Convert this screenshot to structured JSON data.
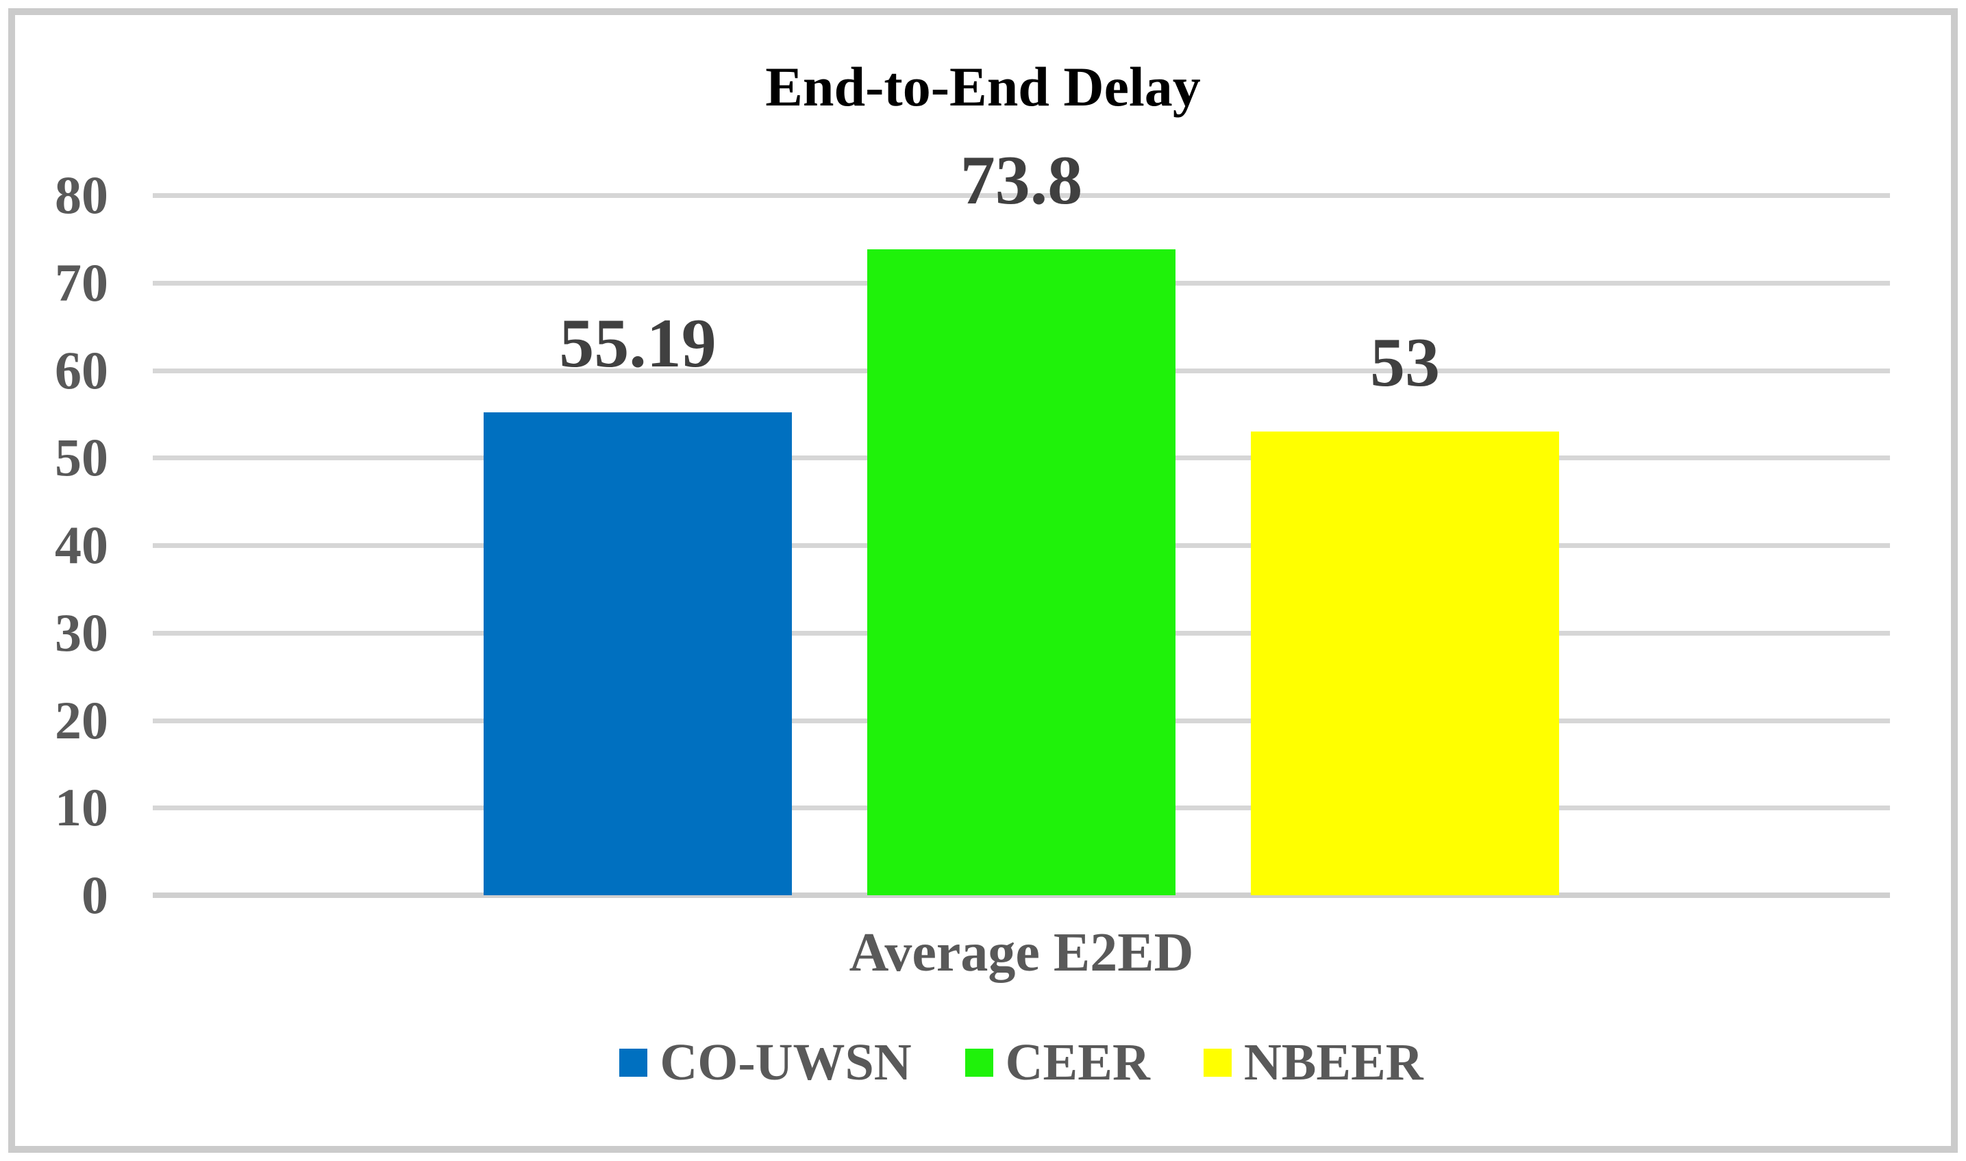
{
  "chart_data": {
    "type": "bar",
    "title": "End-to-End Delay",
    "xlabel": "Average E2ED",
    "ylabel": "",
    "ylim": [
      0,
      80
    ],
    "ytick_step": 10,
    "ytick_labels": [
      "0",
      "10",
      "20",
      "30",
      "40",
      "50",
      "60",
      "70",
      "80"
    ],
    "grid": true,
    "legend_position": "bottom",
    "categories": [
      "Average E2ED"
    ],
    "series": [
      {
        "name": "CO-UWSN",
        "value": 55.19,
        "data_label": "55.19",
        "color": "#0070C0"
      },
      {
        "name": "CEER",
        "value": 73.8,
        "data_label": "73.8",
        "color": "#1FF20A"
      },
      {
        "name": "NBEER",
        "value": 53,
        "data_label": "53",
        "color": "#FFFF00"
      }
    ]
  },
  "colors": {
    "title": "#000000",
    "axis_labels": "#595959",
    "data_labels": "#404040",
    "gridline": "#D6D6D6",
    "frame_border": "#CBCBCB",
    "background": "#FFFFFF"
  }
}
